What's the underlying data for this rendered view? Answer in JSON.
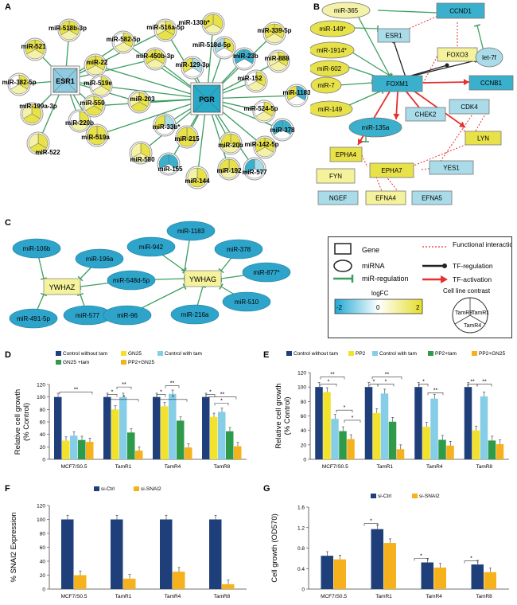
{
  "labels": {
    "A": "A",
    "B": "B",
    "C": "C",
    "D": "D",
    "E": "E",
    "F": "F",
    "G": "G"
  },
  "panelA": {
    "hubs": [
      "ESR1",
      "PGR"
    ],
    "nodes": [
      "miR-518b-3p",
      "miR-521",
      "miR-382-5p",
      "miR-199a-3p",
      "miR-522",
      "miR-220b",
      "miR-582-5p",
      "miR-22",
      "miR-516a-5p",
      "miR-450b-3p",
      "miR-519e",
      "miR-550",
      "miR-203",
      "miR-519a",
      "miR-33b*",
      "miR-580",
      "miR-155",
      "miR-144",
      "miR-192",
      "miR-215",
      "miR-20b",
      "miR-129-3p",
      "miR-130b*",
      "miR-518d-5p",
      "miR-23b",
      "miR-339-5p",
      "miR-888",
      "miR-152",
      "miR-1183",
      "miR-524-5p",
      "miR-378",
      "miR-142-5p",
      "miR-577"
    ]
  },
  "panelB": {
    "genes": [
      "CCND1",
      "ESR1",
      "FOXO3",
      "FOXM1",
      "CCNB1",
      "CHEK2",
      "CDK4",
      "LYN",
      "EPHA4",
      "EPHA7",
      "YES1",
      "FYN",
      "NGEF",
      "EFNA4",
      "EFNA5"
    ],
    "mirnas": [
      "miR-365",
      "miR-149*",
      "miR-1914*",
      "miR-602",
      "miR-7",
      "miR-149",
      "miR-135a",
      "let-7f"
    ]
  },
  "panelC": {
    "genes": [
      "YWHAZ",
      "YWHAG"
    ],
    "mirnas": [
      "miR-106b",
      "miR-196a",
      "miR-491-5p",
      "miR-577",
      "miR-548d-5p",
      "miR-942",
      "miR-1183",
      "miR-378",
      "miR-877*",
      "miR-96",
      "miR-216a",
      "miR-510"
    ]
  },
  "legend": {
    "gene": "Gene",
    "mirna": "miRNA",
    "mir_reg": "miR-regulation",
    "functional": "Functional interaction",
    "tf_reg": "TF-regulation",
    "tf_act": "TF-activation",
    "logfc": "logFC",
    "cb_min": "-2",
    "cb_mid": "0",
    "cb_max": "2",
    "contrast_title": "Cell line contrast",
    "contrast_lines": [
      "TamR8",
      "TamR1",
      "TamR4"
    ]
  },
  "chart_data": [
    {
      "type": "bar",
      "panel": "D",
      "ylabel": "Relative cell growth\n(% Control)",
      "ylim": [
        0,
        120
      ],
      "yticks": [
        0,
        20,
        40,
        60,
        80,
        100,
        120
      ],
      "categories": [
        "MCF7/S0.5",
        "TamR1",
        "TamR4",
        "TamR8"
      ],
      "series": [
        {
          "name": "Control without tam",
          "color": "#1f3f7a",
          "values": [
            100,
            100,
            100,
            100
          ]
        },
        {
          "name": "GN25",
          "color": "#f2e22c",
          "values": [
            30,
            80,
            85,
            68
          ]
        },
        {
          "name": "Control with tam",
          "color": "#86cde8",
          "values": [
            38,
            100,
            105,
            76
          ]
        },
        {
          "name": "GN25 +tam",
          "color": "#2f9a4a",
          "values": [
            31,
            43,
            62,
            45
          ]
        },
        {
          "name": "PP2+GN25",
          "color": "#f5b21c",
          "values": [
            28,
            14,
            19,
            21
          ]
        }
      ]
    },
    {
      "type": "bar",
      "panel": "E",
      "ylabel": "Relative cell growth\n(% Control)",
      "ylim": [
        0,
        120
      ],
      "yticks": [
        0,
        20,
        40,
        60,
        80,
        100,
        120
      ],
      "categories": [
        "MCF7/S0.5",
        "TamR1",
        "TamR4",
        "TamR8"
      ],
      "series": [
        {
          "name": "Control without tam",
          "color": "#1f3f7a",
          "values": [
            100,
            100,
            100,
            100
          ]
        },
        {
          "name": "PP2",
          "color": "#f2e22c",
          "values": [
            93,
            64,
            45,
            40
          ]
        },
        {
          "name": "Control with tam",
          "color": "#86cde8",
          "values": [
            56,
            91,
            84,
            87
          ]
        },
        {
          "name": "PP2+tam",
          "color": "#2f9a4a",
          "values": [
            39,
            52,
            27,
            26
          ]
        },
        {
          "name": "PP2+GN25",
          "color": "#f5b21c",
          "values": [
            28,
            14,
            19,
            21
          ]
        }
      ]
    },
    {
      "type": "bar",
      "panel": "F",
      "ylabel": "% SNAI2 Expression",
      "ylim": [
        0,
        120
      ],
      "yticks": [
        0,
        20,
        40,
        60,
        80,
        100,
        120
      ],
      "categories": [
        "MCF7/S0.5",
        "TamR1",
        "TamR4",
        "TamR8"
      ],
      "series": [
        {
          "name": "si-Ctrl",
          "color": "#1f3f7a",
          "values": [
            100,
            100,
            100,
            100
          ]
        },
        {
          "name": "si-SNAI2",
          "color": "#f5b21c",
          "values": [
            20,
            15,
            25,
            7
          ]
        }
      ]
    },
    {
      "type": "bar",
      "panel": "G",
      "ylabel": "Cell growth (OD570)",
      "ylim": [
        0,
        1.6
      ],
      "yticks": [
        "0",
        "0.4",
        "0.8",
        "1.2",
        "1.6"
      ],
      "categories": [
        "MCF7/S0.5",
        "TamR1",
        "TamR4",
        "TamR8"
      ],
      "series": [
        {
          "name": "si-Ctrl",
          "color": "#1f3f7a",
          "values": [
            0.65,
            1.17,
            0.52,
            0.48
          ]
        },
        {
          "name": "si-SNAI2",
          "color": "#f5b21c",
          "values": [
            0.58,
            0.9,
            0.42,
            0.33
          ]
        }
      ]
    }
  ],
  "colors": {
    "gene_blue": "#3ab0cc",
    "gene_light": "#a9dbe8",
    "gene_yellow": "#f5f29c",
    "mirna_yellow": "#e8e24a",
    "edge_green": "#3a9e5f",
    "edge_red": "#e53030",
    "edge_black": "#222222"
  }
}
